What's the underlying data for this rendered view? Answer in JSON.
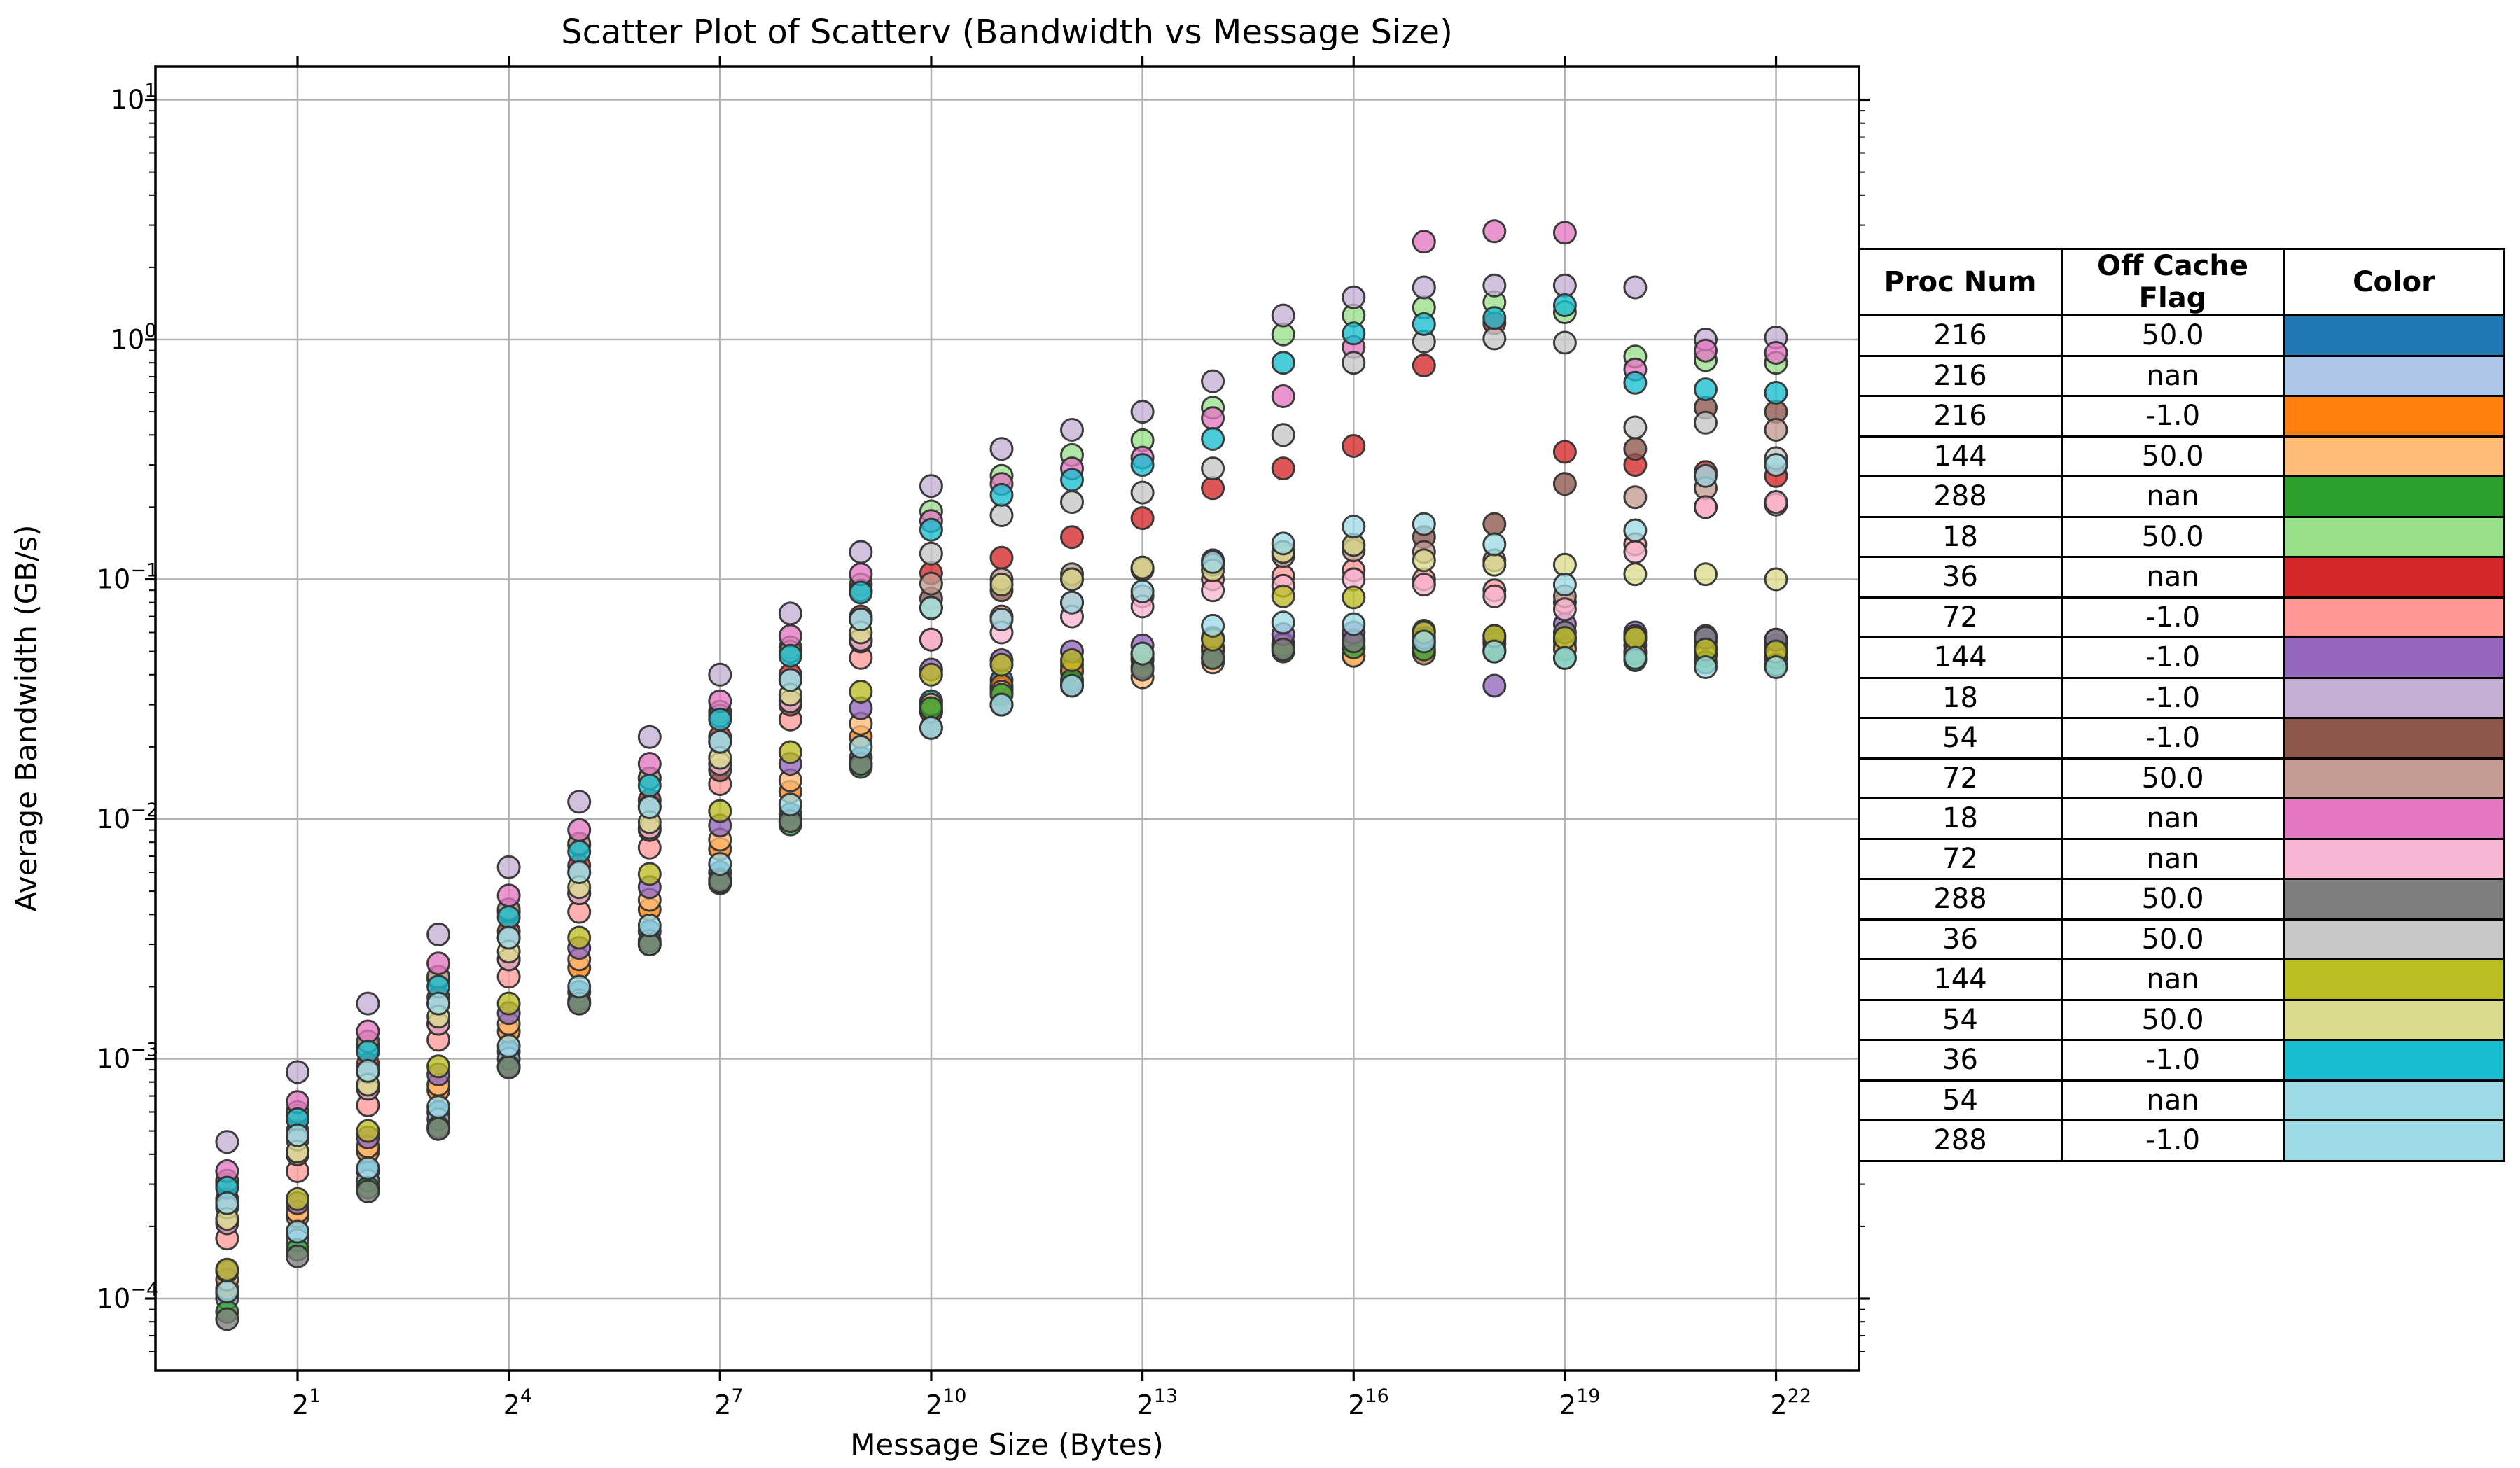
{
  "title": "Scatter Plot of Scatterv (Bandwidth vs Message Size)",
  "xlabel": "Message Size (Bytes)",
  "ylabel": "Average Bandwidth (GB/s)",
  "axes": {
    "x_scale": "log2",
    "y_scale": "log10",
    "x_tick_exponents": [
      1,
      4,
      7,
      10,
      13,
      16,
      19,
      22
    ],
    "x_tick_labels": [
      "2^1",
      "2^4",
      "2^7",
      "2^10",
      "2^13",
      "2^16",
      "2^19",
      "2^22"
    ],
    "y_tick_exponents": [
      1,
      0,
      -1,
      -2,
      -3,
      -4
    ],
    "y_tick_labels": [
      "10^1",
      "10^0",
      "10^-1",
      "10^-2",
      "10^-3",
      "10^-4"
    ],
    "grid": true,
    "grid_color": "#b0b0b0",
    "spine_color": "#000000"
  },
  "legend_table": {
    "headers": [
      "Proc Num",
      "Off Cache Flag",
      "Color"
    ],
    "rows": [
      {
        "proc": "216",
        "flag": "50.0",
        "color": "#1f77b4"
      },
      {
        "proc": "216",
        "flag": "nan",
        "color": "#aec7e8"
      },
      {
        "proc": "216",
        "flag": "-1.0",
        "color": "#ff7f0e"
      },
      {
        "proc": "144",
        "flag": "50.0",
        "color": "#ffbb78"
      },
      {
        "proc": "288",
        "flag": "nan",
        "color": "#2ca02c"
      },
      {
        "proc": "18",
        "flag": "50.0",
        "color": "#98df8a"
      },
      {
        "proc": "36",
        "flag": "nan",
        "color": "#d62728"
      },
      {
        "proc": "72",
        "flag": "-1.0",
        "color": "#ff9896"
      },
      {
        "proc": "144",
        "flag": "-1.0",
        "color": "#9467bd"
      },
      {
        "proc": "18",
        "flag": "-1.0",
        "color": "#c5b0d5"
      },
      {
        "proc": "54",
        "flag": "-1.0",
        "color": "#8c564b"
      },
      {
        "proc": "72",
        "flag": "50.0",
        "color": "#c49c94"
      },
      {
        "proc": "18",
        "flag": "nan",
        "color": "#e377c2"
      },
      {
        "proc": "72",
        "flag": "nan",
        "color": "#f7b6d2"
      },
      {
        "proc": "288",
        "flag": "50.0",
        "color": "#7f7f7f"
      },
      {
        "proc": "36",
        "flag": "50.0",
        "color": "#c7c7c7"
      },
      {
        "proc": "144",
        "flag": "nan",
        "color": "#bcbd22"
      },
      {
        "proc": "54",
        "flag": "50.0",
        "color": "#dbdb8d"
      },
      {
        "proc": "36",
        "flag": "-1.0",
        "color": "#17becf"
      },
      {
        "proc": "54",
        "flag": "nan",
        "color": "#9edae5"
      },
      {
        "proc": "288",
        "flag": "-1.0",
        "color": "#9edae5"
      }
    ]
  },
  "chart_data": {
    "type": "scatter",
    "x_label_base": 2,
    "x_exponents": [
      0,
      1,
      2,
      3,
      4,
      5,
      6,
      7,
      8,
      9,
      10,
      11,
      12,
      13,
      14,
      15,
      16,
      17,
      18,
      19,
      20,
      21,
      22
    ],
    "xlim_log2": [
      -1.0,
      23.2
    ],
    "ylim_log10": [
      -4.28,
      1.14
    ],
    "marker": {
      "radius": 15.5,
      "fill_alpha": 0.78,
      "edge_color": "#333333",
      "edge_width": 3
    },
    "series": [
      {
        "name": "216 / 50.0",
        "proc": 216,
        "flag": "50.0",
        "color": "#1f77b4",
        "values": [
          0.000105,
          0.00019,
          0.00034,
          0.0006,
          0.00107,
          0.0019,
          0.0034,
          0.006,
          0.0105,
          0.018,
          0.031,
          0.038,
          0.044,
          0.049,
          0.052,
          0.054,
          0.056,
          0.055,
          0.056,
          0.057,
          0.056,
          0.055,
          0.053
        ]
      },
      {
        "name": "216 / nan",
        "proc": 216,
        "flag": "nan",
        "color": "#aec7e8",
        "values": [
          0.0001,
          0.000175,
          0.00031,
          0.00056,
          0.001,
          0.00175,
          0.0031,
          0.0056,
          0.0098,
          0.017,
          0.028,
          0.035,
          0.041,
          0.046,
          0.05,
          0.052,
          0.052,
          0.053,
          0.054,
          0.055,
          0.053,
          0.052,
          0.051
        ]
      },
      {
        "name": "216 / -1.0",
        "proc": 216,
        "flag": "-1.0",
        "color": "#ff7f0e",
        "values": [
          0.00011,
          0.00022,
          0.00041,
          0.00074,
          0.0013,
          0.0024,
          0.0042,
          0.0075,
          0.013,
          0.022,
          0.028,
          0.036,
          0.042,
          0.047,
          0.052,
          0.053,
          0.048,
          0.05,
          0.051,
          0.052,
          0.05,
          0.049,
          0.048
        ]
      },
      {
        "name": "144 / 50.0",
        "proc": 144,
        "flag": "50.0",
        "color": "#ffbb78",
        "values": [
          0.00012,
          0.00023,
          0.00043,
          0.00078,
          0.0014,
          0.0026,
          0.0046,
          0.0082,
          0.0145,
          0.025,
          0.03,
          0.034,
          0.037,
          0.039,
          0.045,
          0.053,
          0.048,
          0.049,
          0.05,
          0.051,
          0.049,
          0.048,
          0.047
        ]
      },
      {
        "name": "288 / nan",
        "proc": 288,
        "flag": "nan",
        "color": "#2ca02c",
        "values": [
          8.8e-05,
          0.00016,
          0.00029,
          0.00052,
          0.00093,
          0.0017,
          0.003,
          0.0054,
          0.0095,
          0.0165,
          0.029,
          0.033,
          0.038,
          0.043,
          0.047,
          0.05,
          0.052,
          0.051,
          0.05,
          0.047,
          0.046,
          0.045,
          0.044
        ]
      },
      {
        "name": "18 / 50.0",
        "proc": 18,
        "flag": "50.0",
        "color": "#98df8a",
        "values": [
          0.0003,
          0.00058,
          0.00112,
          0.00215,
          0.0041,
          0.0078,
          0.0148,
          0.028,
          0.052,
          0.095,
          0.192,
          0.27,
          0.33,
          0.38,
          0.52,
          1.05,
          1.26,
          1.36,
          1.43,
          1.3,
          0.85,
          0.82,
          0.8
        ]
      },
      {
        "name": "36 / nan",
        "proc": 36,
        "flag": "nan",
        "color": "#d62728",
        "values": [
          0.00026,
          0.0005,
          0.00095,
          0.0018,
          0.0034,
          0.0064,
          0.012,
          0.022,
          0.04,
          0.07,
          0.106,
          0.123,
          0.15,
          0.18,
          0.24,
          0.29,
          0.36,
          0.78,
          1.17,
          0.34,
          0.3,
          0.28,
          0.27
        ]
      },
      {
        "name": "72 / -1.0",
        "proc": 72,
        "flag": "-1.0",
        "color": "#ff9896",
        "values": [
          0.000178,
          0.00034,
          0.00064,
          0.0012,
          0.0022,
          0.0041,
          0.0076,
          0.014,
          0.026,
          0.047,
          0.056,
          0.07,
          0.08,
          0.085,
          0.1,
          0.103,
          0.109,
          0.1,
          0.09,
          0.08,
          0.14,
          0.2,
          0.205
        ]
      },
      {
        "name": "144 / -1.0",
        "proc": 144,
        "flag": "-1.0",
        "color": "#9467bd",
        "values": [
          0.00013,
          0.00025,
          0.00047,
          0.00086,
          0.00155,
          0.0029,
          0.0052,
          0.0094,
          0.017,
          0.029,
          0.042,
          0.046,
          0.05,
          0.053,
          0.057,
          0.059,
          0.06,
          0.061,
          0.036,
          0.065,
          0.06,
          0.058,
          0.056
        ]
      },
      {
        "name": "18 / -1.0",
        "proc": 18,
        "flag": "-1.0",
        "color": "#c5b0d5",
        "values": [
          0.00045,
          0.00088,
          0.0017,
          0.0033,
          0.0063,
          0.0118,
          0.022,
          0.04,
          0.072,
          0.13,
          0.245,
          0.35,
          0.42,
          0.5,
          0.67,
          1.26,
          1.5,
          1.65,
          1.68,
          1.68,
          1.65,
          1.0,
          1.02
        ]
      },
      {
        "name": "54 / -1.0",
        "proc": 54,
        "flag": "-1.0",
        "color": "#8c564b",
        "values": [
          0.00021,
          0.0004,
          0.00075,
          0.0014,
          0.0026,
          0.0049,
          0.009,
          0.016,
          0.03,
          0.055,
          0.083,
          0.09,
          0.1,
          0.11,
          0.12,
          0.13,
          0.139,
          0.15,
          0.17,
          0.25,
          0.35,
          0.52,
          0.5
        ]
      },
      {
        "name": "72 / 50.0",
        "proc": 72,
        "flag": "50.0",
        "color": "#c49c94",
        "values": [
          0.00031,
          0.0006,
          0.00118,
          0.0022,
          0.0042,
          0.0079,
          0.0148,
          0.027,
          0.05,
          0.09,
          0.096,
          0.1,
          0.105,
          0.11,
          0.115,
          0.125,
          0.132,
          0.13,
          0.12,
          0.085,
          0.22,
          0.24,
          0.42
        ]
      },
      {
        "name": "18 / nan",
        "proc": 18,
        "flag": "nan",
        "color": "#e377c2",
        "values": [
          0.00034,
          0.00066,
          0.0013,
          0.0025,
          0.0048,
          0.009,
          0.017,
          0.031,
          0.058,
          0.105,
          0.175,
          0.25,
          0.29,
          0.322,
          0.47,
          0.58,
          0.93,
          2.56,
          2.83,
          2.79,
          0.75,
          0.9,
          0.88
        ]
      },
      {
        "name": "72 / nan",
        "proc": 72,
        "flag": "nan",
        "color": "#f7b6d2",
        "values": [
          0.000206,
          0.0004,
          0.00075,
          0.0014,
          0.0026,
          0.0049,
          0.0092,
          0.017,
          0.031,
          0.056,
          0.056,
          0.06,
          0.07,
          0.077,
          0.09,
          0.094,
          0.1,
          0.095,
          0.085,
          0.075,
          0.13,
          0.2,
          0.21
        ]
      },
      {
        "name": "288 / 50.0",
        "proc": 288,
        "flag": "50.0",
        "color": "#7f7f7f",
        "values": [
          8.2e-05,
          0.00015,
          0.00028,
          0.00051,
          0.00092,
          0.0017,
          0.003,
          0.0055,
          0.0098,
          0.017,
          0.024,
          0.03,
          0.036,
          0.042,
          0.047,
          0.051,
          0.055,
          0.057,
          0.058,
          0.06,
          0.058,
          0.057,
          0.056
        ]
      },
      {
        "name": "36 / 50.0",
        "proc": 36,
        "flag": "50.0",
        "color": "#c7c7c7",
        "values": [
          0.00024,
          0.00046,
          0.00088,
          0.0017,
          0.0032,
          0.006,
          0.0113,
          0.021,
          0.038,
          0.068,
          0.128,
          0.185,
          0.21,
          0.23,
          0.29,
          0.4,
          0.8,
          0.98,
          1.01,
          0.97,
          0.43,
          0.45,
          0.32
        ]
      },
      {
        "name": "144 / nan",
        "proc": 144,
        "flag": "nan",
        "color": "#bcbd22",
        "values": [
          0.000132,
          0.00026,
          0.0005,
          0.00093,
          0.0017,
          0.0032,
          0.0059,
          0.0108,
          0.019,
          0.034,
          0.04,
          0.044,
          0.046,
          0.049,
          0.056,
          0.085,
          0.084,
          0.06,
          0.058,
          0.057,
          0.057,
          0.051,
          0.05
        ]
      },
      {
        "name": "54 / 50.0",
        "proc": 54,
        "flag": "50.0",
        "color": "#dbdb8d",
        "values": [
          0.000215,
          0.00041,
          0.00078,
          0.0015,
          0.0028,
          0.0052,
          0.0097,
          0.018,
          0.033,
          0.06,
          0.076,
          0.095,
          0.1,
          0.112,
          0.109,
          0.13,
          0.139,
          0.12,
          0.115,
          0.115,
          0.105,
          0.105,
          0.1
        ]
      },
      {
        "name": "36 / -1.0",
        "proc": 36,
        "flag": "-1.0",
        "color": "#17becf",
        "values": [
          0.00029,
          0.00056,
          0.00107,
          0.002,
          0.0039,
          0.0073,
          0.0138,
          0.026,
          0.048,
          0.088,
          0.161,
          0.225,
          0.26,
          0.3,
          0.385,
          0.8,
          1.06,
          1.16,
          1.23,
          1.39,
          0.66,
          0.62,
          0.6
        ]
      },
      {
        "name": "54 / nan",
        "proc": 54,
        "flag": "nan",
        "color": "#9edae5",
        "values": [
          0.00025,
          0.00048,
          0.00089,
          0.0017,
          0.0032,
          0.006,
          0.0112,
          0.021,
          0.038,
          0.068,
          0.076,
          0.068,
          0.08,
          0.089,
          0.118,
          0.141,
          0.166,
          0.17,
          0.14,
          0.095,
          0.16,
          0.27,
          0.3
        ]
      },
      {
        "name": "288 / -1.0",
        "proc": 288,
        "flag": "-1.0",
        "color": "#9edae5",
        "values": [
          0.000107,
          0.00019,
          0.00035,
          0.00063,
          0.00113,
          0.002,
          0.0036,
          0.0065,
          0.0115,
          0.02,
          0.024,
          0.03,
          0.036,
          0.049,
          0.064,
          0.066,
          0.065,
          0.055,
          0.05,
          0.047,
          0.047,
          0.043,
          0.043
        ]
      }
    ]
  }
}
